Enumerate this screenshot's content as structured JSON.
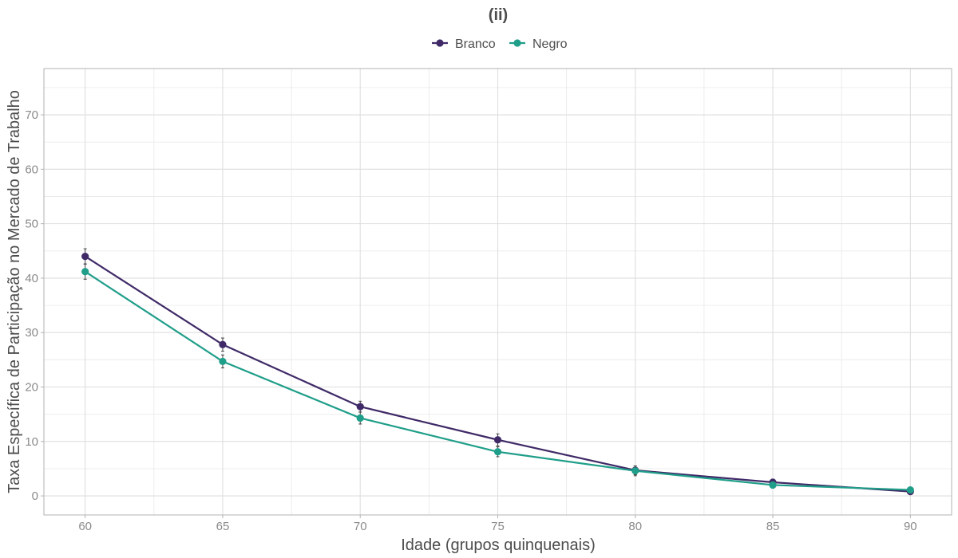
{
  "chart_data": {
    "type": "line",
    "title": "(ii)",
    "xlabel": "Idade (grupos quinquenais)",
    "ylabel": "Taxa Específica de Participação no Mercado de Trabalho",
    "x": [
      60,
      65,
      70,
      75,
      80,
      85,
      90
    ],
    "x_ticks": [
      60,
      65,
      70,
      75,
      80,
      85,
      90
    ],
    "y_ticks": [
      0,
      10,
      20,
      30,
      40,
      50,
      60,
      70
    ],
    "xlim": [
      58.5,
      91.5
    ],
    "ylim": [
      -3.5,
      78.5
    ],
    "grid": true,
    "legend_position": "top",
    "series": [
      {
        "name": "Branco",
        "color": "#3f2a67",
        "values": [
          44.0,
          27.8,
          16.4,
          10.3,
          4.7,
          2.5,
          0.8
        ],
        "error_low": [
          42.6,
          26.6,
          15.4,
          9.2,
          3.9,
          1.9,
          0.3
        ],
        "error_high": [
          45.4,
          29.0,
          17.4,
          11.4,
          5.5,
          3.1,
          1.3
        ]
      },
      {
        "name": "Negro",
        "color": "#1f9e89",
        "values": [
          41.2,
          24.7,
          14.3,
          8.1,
          4.6,
          2.0,
          1.1
        ],
        "error_low": [
          39.8,
          23.5,
          13.2,
          7.2,
          3.7,
          1.4,
          0.6
        ],
        "error_high": [
          42.6,
          25.9,
          15.4,
          9.0,
          5.5,
          2.6,
          1.6
        ]
      }
    ]
  }
}
